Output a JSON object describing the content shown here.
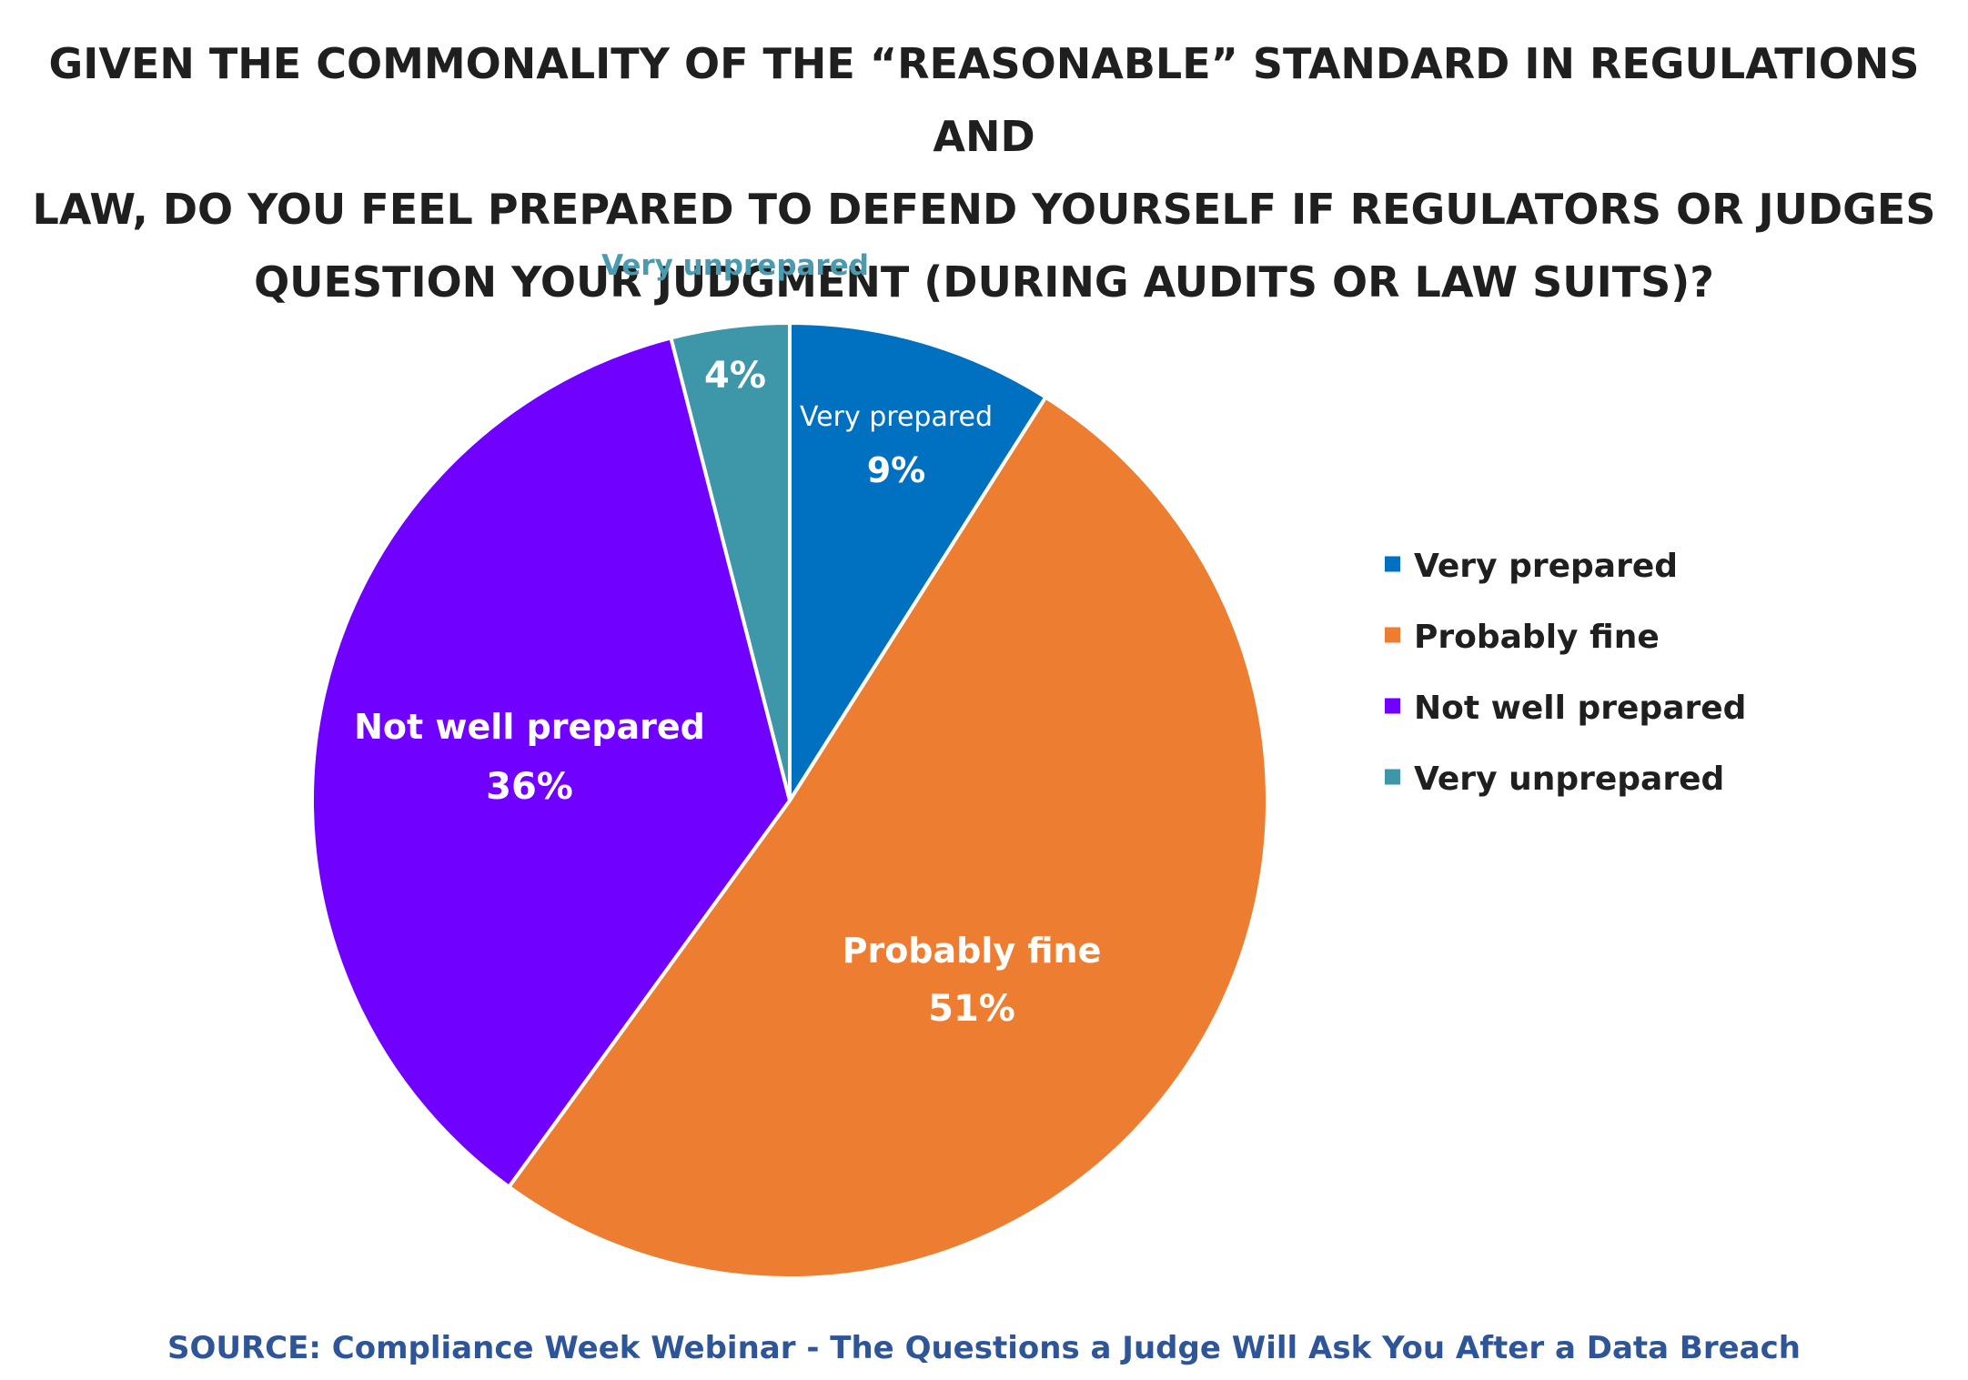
{
  "title_lines": [
    "GIVEN THE COMMONALITY OF THE “REASONABLE” STANDARD IN REGULATIONS AND",
    "LAW, DO YOU FEEL PREPARED TO DEFEND YOURSELF IF REGULATORS OR JUDGES",
    "QUESTION YOUR JUDGMENT (DURING AUDITS OR LAW SUITS)?"
  ],
  "source": "SOURCE: Compliance Week Webinar - The Questions a Judge Will Ask You After a Data Breach",
  "chart_data": {
    "type": "pie",
    "title": "GIVEN THE COMMONALITY OF THE “REASONABLE” STANDARD IN REGULATIONS AND LAW, DO YOU FEEL PREPARED TO DEFEND YOURSELF IF REGULATORS OR JUDGES QUESTION YOUR JUDGMENT (DURING AUDITS OR LAW SUITS)?",
    "legend_position": "right",
    "slices": [
      {
        "label": "Very prepared",
        "value": 9,
        "value_label": "9%",
        "color": "#0070c0",
        "label_color": "#ffffff"
      },
      {
        "label": "Probably fine",
        "value": 51,
        "value_label": "51%",
        "color": "#ed7d31",
        "label_color": "#ffffff"
      },
      {
        "label": "Not well prepared",
        "value": 36,
        "value_label": "36%",
        "color": "#7000ff",
        "label_color": "#ffffff"
      },
      {
        "label": "Very unprepared",
        "value": 4,
        "value_label": "4%",
        "color": "#3d97a8",
        "label_color": "#4a9bb0"
      }
    ]
  }
}
